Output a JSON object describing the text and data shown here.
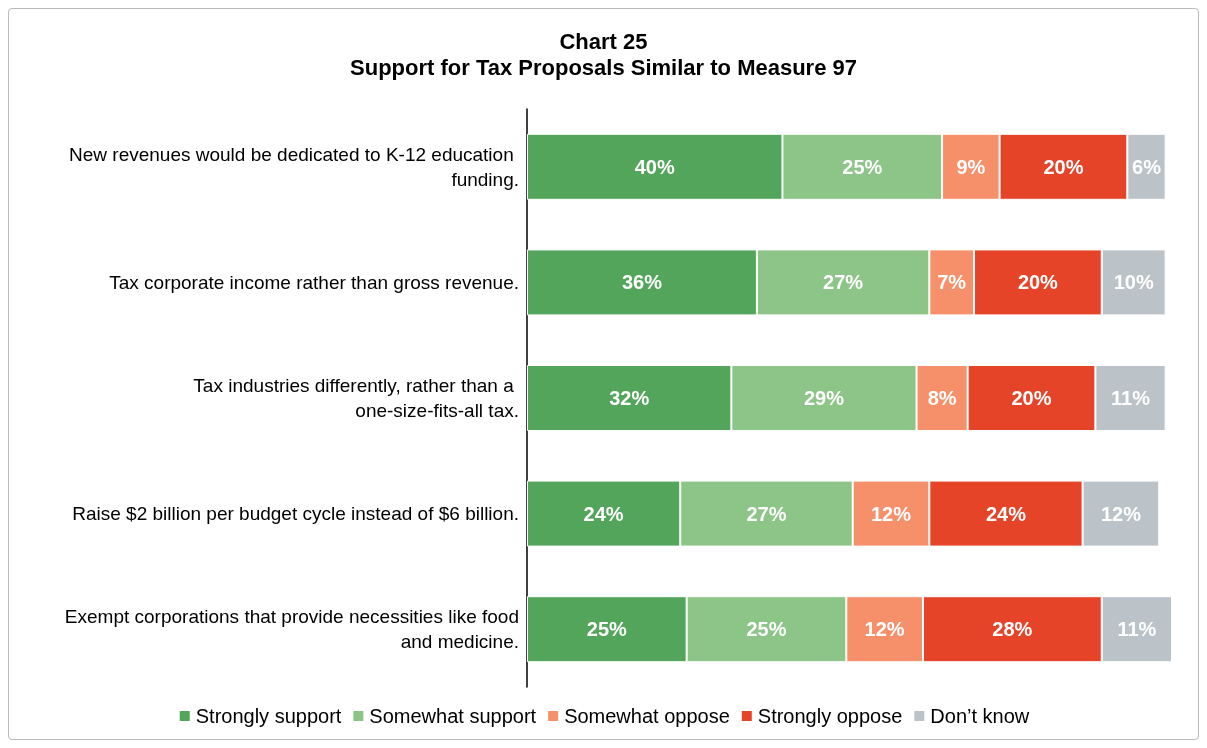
{
  "chart_data": {
    "type": "bar",
    "orientation": "horizontal",
    "stacked": true,
    "title": "Chart 25",
    "subtitle": "Support for Tax Proposals Similar to Measure 97",
    "categories": [
      "New revenues would be dedicated to K-12 education funding.",
      "Tax corporate income rather than gross revenue.",
      "Tax industries differently, rather than a one-size-fits-all tax.",
      "Raise $2 billion per budget cycle instead of $6 billion.",
      "Exempt corporations that provide necessities like food and medicine."
    ],
    "series": [
      {
        "name": "Strongly support",
        "color": "#52a55a",
        "values": [
          40,
          36,
          32,
          24,
          25
        ],
        "value_labels": [
          "40%",
          "36%",
          "32%",
          "24%",
          "25%"
        ]
      },
      {
        "name": "Somewhat support",
        "color": "#8cc587",
        "values": [
          25,
          27,
          29,
          27,
          25
        ],
        "value_labels": [
          "25%",
          "27%",
          "29%",
          "27%",
          "25%"
        ]
      },
      {
        "name": "Somewhat oppose",
        "color": "#f5906a",
        "values": [
          9,
          7,
          8,
          12,
          12
        ],
        "value_labels": [
          "9%",
          "7%",
          "8%",
          "12%",
          "12%"
        ]
      },
      {
        "name": "Strongly oppose",
        "color": "#e64429",
        "values": [
          20,
          20,
          20,
          24,
          28
        ],
        "value_labels": [
          "20%",
          "20%",
          "20%",
          "24%",
          "28%"
        ]
      },
      {
        "name": "Don’t know",
        "color": "#bcc3c8",
        "values": [
          6,
          10,
          11,
          12,
          11
        ],
        "value_labels": [
          "6%",
          "10%",
          "11%",
          "12%",
          "11%"
        ]
      }
    ],
    "legend": "bottom",
    "grid": false
  }
}
